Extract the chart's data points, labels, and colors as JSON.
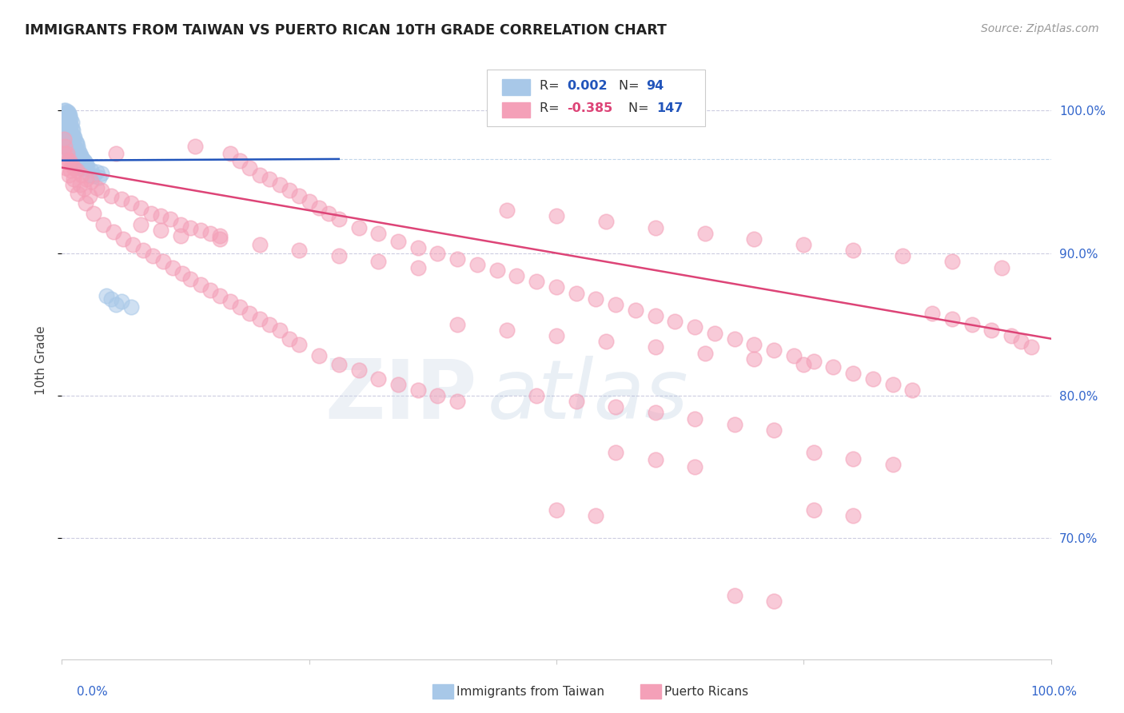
{
  "title": "IMMIGRANTS FROM TAIWAN VS PUERTO RICAN 10TH GRADE CORRELATION CHART",
  "source": "Source: ZipAtlas.com",
  "ylabel": "10th Grade",
  "ytick_labels": [
    "70.0%",
    "80.0%",
    "90.0%",
    "100.0%"
  ],
  "ytick_values": [
    0.7,
    0.8,
    0.9,
    1.0
  ],
  "xrange": [
    0.0,
    1.0
  ],
  "yrange": [
    0.615,
    1.035
  ],
  "blue_color": "#a8c8e8",
  "pink_color": "#f4a0b8",
  "blue_line_color": "#2255bb",
  "pink_line_color": "#dd4477",
  "watermark_zip": "ZIP",
  "watermark_atlas": "atlas",
  "blue_scatter": [
    [
      0.002,
      1.0
    ],
    [
      0.004,
      1.0
    ],
    [
      0.005,
      0.999
    ],
    [
      0.006,
      0.999
    ],
    [
      0.007,
      0.998
    ],
    [
      0.003,
      0.998
    ],
    [
      0.002,
      0.997
    ],
    [
      0.008,
      0.997
    ],
    [
      0.004,
      0.996
    ],
    [
      0.005,
      0.996
    ],
    [
      0.006,
      0.995
    ],
    [
      0.007,
      0.995
    ],
    [
      0.009,
      0.994
    ],
    [
      0.003,
      0.994
    ],
    [
      0.002,
      0.993
    ],
    [
      0.008,
      0.993
    ],
    [
      0.01,
      0.992
    ],
    [
      0.004,
      0.992
    ],
    [
      0.005,
      0.991
    ],
    [
      0.006,
      0.991
    ],
    [
      0.007,
      0.99
    ],
    [
      0.003,
      0.99
    ],
    [
      0.009,
      0.989
    ],
    [
      0.002,
      0.989
    ],
    [
      0.008,
      0.988
    ],
    [
      0.01,
      0.988
    ],
    [
      0.004,
      0.987
    ],
    [
      0.005,
      0.987
    ],
    [
      0.006,
      0.986
    ],
    [
      0.011,
      0.986
    ],
    [
      0.007,
      0.985
    ],
    [
      0.003,
      0.985
    ],
    [
      0.009,
      0.984
    ],
    [
      0.002,
      0.984
    ],
    [
      0.008,
      0.983
    ],
    [
      0.01,
      0.983
    ],
    [
      0.012,
      0.982
    ],
    [
      0.004,
      0.982
    ],
    [
      0.005,
      0.981
    ],
    [
      0.013,
      0.981
    ],
    [
      0.006,
      0.98
    ],
    [
      0.011,
      0.98
    ],
    [
      0.007,
      0.979
    ],
    [
      0.003,
      0.979
    ],
    [
      0.009,
      0.978
    ],
    [
      0.014,
      0.978
    ],
    [
      0.008,
      0.977
    ],
    [
      0.015,
      0.977
    ],
    [
      0.01,
      0.976
    ],
    [
      0.012,
      0.976
    ],
    [
      0.004,
      0.975
    ],
    [
      0.016,
      0.975
    ],
    [
      0.005,
      0.974
    ],
    [
      0.013,
      0.974
    ],
    [
      0.006,
      0.973
    ],
    [
      0.011,
      0.973
    ],
    [
      0.007,
      0.972
    ],
    [
      0.017,
      0.972
    ],
    [
      0.009,
      0.971
    ],
    [
      0.014,
      0.971
    ],
    [
      0.008,
      0.97
    ],
    [
      0.018,
      0.97
    ],
    [
      0.01,
      0.969
    ],
    [
      0.015,
      0.969
    ],
    [
      0.012,
      0.968
    ],
    [
      0.019,
      0.968
    ],
    [
      0.02,
      0.967
    ],
    [
      0.016,
      0.967
    ],
    [
      0.013,
      0.966
    ],
    [
      0.021,
      0.966
    ],
    [
      0.011,
      0.965
    ],
    [
      0.022,
      0.965
    ],
    [
      0.017,
      0.964
    ],
    [
      0.023,
      0.964
    ],
    [
      0.014,
      0.963
    ],
    [
      0.024,
      0.963
    ],
    [
      0.018,
      0.962
    ],
    [
      0.025,
      0.962
    ],
    [
      0.015,
      0.961
    ],
    [
      0.026,
      0.961
    ],
    [
      0.019,
      0.96
    ],
    [
      0.02,
      0.959
    ],
    [
      0.03,
      0.958
    ],
    [
      0.035,
      0.957
    ],
    [
      0.04,
      0.956
    ],
    [
      0.028,
      0.955
    ],
    [
      0.032,
      0.954
    ],
    [
      0.038,
      0.953
    ],
    [
      0.045,
      0.87
    ],
    [
      0.05,
      0.868
    ],
    [
      0.06,
      0.866
    ],
    [
      0.055,
      0.864
    ],
    [
      0.07,
      0.862
    ]
  ],
  "pink_scatter": [
    [
      0.002,
      0.98
    ],
    [
      0.003,
      0.975
    ],
    [
      0.005,
      0.97
    ],
    [
      0.008,
      0.965
    ],
    [
      0.01,
      0.962
    ],
    [
      0.012,
      0.96
    ],
    [
      0.015,
      0.958
    ],
    [
      0.02,
      0.955
    ],
    [
      0.025,
      0.952
    ],
    [
      0.03,
      0.95
    ],
    [
      0.035,
      0.946
    ],
    [
      0.04,
      0.944
    ],
    [
      0.05,
      0.94
    ],
    [
      0.06,
      0.938
    ],
    [
      0.07,
      0.935
    ],
    [
      0.08,
      0.932
    ],
    [
      0.09,
      0.928
    ],
    [
      0.1,
      0.926
    ],
    [
      0.11,
      0.924
    ],
    [
      0.12,
      0.92
    ],
    [
      0.13,
      0.918
    ],
    [
      0.14,
      0.916
    ],
    [
      0.15,
      0.914
    ],
    [
      0.16,
      0.912
    ],
    [
      0.003,
      0.97
    ],
    [
      0.006,
      0.965
    ],
    [
      0.009,
      0.958
    ],
    [
      0.012,
      0.952
    ],
    [
      0.018,
      0.948
    ],
    [
      0.022,
      0.945
    ],
    [
      0.028,
      0.94
    ],
    [
      0.004,
      0.96
    ],
    [
      0.007,
      0.955
    ],
    [
      0.011,
      0.948
    ],
    [
      0.016,
      0.942
    ],
    [
      0.024,
      0.935
    ],
    [
      0.032,
      0.928
    ],
    [
      0.042,
      0.92
    ],
    [
      0.052,
      0.915
    ],
    [
      0.062,
      0.91
    ],
    [
      0.072,
      0.906
    ],
    [
      0.082,
      0.902
    ],
    [
      0.092,
      0.898
    ],
    [
      0.102,
      0.894
    ],
    [
      0.112,
      0.89
    ],
    [
      0.122,
      0.886
    ],
    [
      0.055,
      0.97
    ],
    [
      0.135,
      0.975
    ],
    [
      0.17,
      0.97
    ],
    [
      0.18,
      0.965
    ],
    [
      0.19,
      0.96
    ],
    [
      0.2,
      0.955
    ],
    [
      0.21,
      0.952
    ],
    [
      0.22,
      0.948
    ],
    [
      0.23,
      0.944
    ],
    [
      0.24,
      0.94
    ],
    [
      0.25,
      0.936
    ],
    [
      0.26,
      0.932
    ],
    [
      0.27,
      0.928
    ],
    [
      0.28,
      0.924
    ],
    [
      0.3,
      0.918
    ],
    [
      0.32,
      0.914
    ],
    [
      0.34,
      0.908
    ],
    [
      0.36,
      0.904
    ],
    [
      0.38,
      0.9
    ],
    [
      0.4,
      0.896
    ],
    [
      0.42,
      0.892
    ],
    [
      0.44,
      0.888
    ],
    [
      0.46,
      0.884
    ],
    [
      0.48,
      0.88
    ],
    [
      0.5,
      0.876
    ],
    [
      0.52,
      0.872
    ],
    [
      0.54,
      0.868
    ],
    [
      0.56,
      0.864
    ],
    [
      0.58,
      0.86
    ],
    [
      0.6,
      0.856
    ],
    [
      0.62,
      0.852
    ],
    [
      0.64,
      0.848
    ],
    [
      0.66,
      0.844
    ],
    [
      0.68,
      0.84
    ],
    [
      0.7,
      0.836
    ],
    [
      0.72,
      0.832
    ],
    [
      0.74,
      0.828
    ],
    [
      0.76,
      0.824
    ],
    [
      0.78,
      0.82
    ],
    [
      0.8,
      0.816
    ],
    [
      0.82,
      0.812
    ],
    [
      0.84,
      0.808
    ],
    [
      0.86,
      0.804
    ],
    [
      0.88,
      0.858
    ],
    [
      0.9,
      0.854
    ],
    [
      0.92,
      0.85
    ],
    [
      0.94,
      0.846
    ],
    [
      0.96,
      0.842
    ],
    [
      0.97,
      0.838
    ],
    [
      0.98,
      0.834
    ],
    [
      0.13,
      0.882
    ],
    [
      0.14,
      0.878
    ],
    [
      0.15,
      0.874
    ],
    [
      0.16,
      0.87
    ],
    [
      0.17,
      0.866
    ],
    [
      0.18,
      0.862
    ],
    [
      0.19,
      0.858
    ],
    [
      0.2,
      0.854
    ],
    [
      0.21,
      0.85
    ],
    [
      0.22,
      0.846
    ],
    [
      0.23,
      0.84
    ],
    [
      0.24,
      0.836
    ],
    [
      0.26,
      0.828
    ],
    [
      0.28,
      0.822
    ],
    [
      0.3,
      0.818
    ],
    [
      0.32,
      0.812
    ],
    [
      0.34,
      0.808
    ],
    [
      0.36,
      0.804
    ],
    [
      0.38,
      0.8
    ],
    [
      0.4,
      0.796
    ],
    [
      0.08,
      0.92
    ],
    [
      0.1,
      0.916
    ],
    [
      0.12,
      0.912
    ],
    [
      0.45,
      0.93
    ],
    [
      0.5,
      0.926
    ],
    [
      0.55,
      0.922
    ],
    [
      0.6,
      0.918
    ],
    [
      0.65,
      0.914
    ],
    [
      0.7,
      0.91
    ],
    [
      0.75,
      0.906
    ],
    [
      0.8,
      0.902
    ],
    [
      0.85,
      0.898
    ],
    [
      0.9,
      0.894
    ],
    [
      0.95,
      0.89
    ],
    [
      0.4,
      0.85
    ],
    [
      0.45,
      0.846
    ],
    [
      0.5,
      0.842
    ],
    [
      0.55,
      0.838
    ],
    [
      0.6,
      0.834
    ],
    [
      0.65,
      0.83
    ],
    [
      0.7,
      0.826
    ],
    [
      0.75,
      0.822
    ],
    [
      0.16,
      0.91
    ],
    [
      0.2,
      0.906
    ],
    [
      0.24,
      0.902
    ],
    [
      0.28,
      0.898
    ],
    [
      0.32,
      0.894
    ],
    [
      0.36,
      0.89
    ],
    [
      0.48,
      0.8
    ],
    [
      0.52,
      0.796
    ],
    [
      0.56,
      0.792
    ],
    [
      0.6,
      0.788
    ],
    [
      0.64,
      0.784
    ],
    [
      0.68,
      0.78
    ],
    [
      0.72,
      0.776
    ],
    [
      0.56,
      0.76
    ],
    [
      0.6,
      0.755
    ],
    [
      0.64,
      0.75
    ],
    [
      0.5,
      0.72
    ],
    [
      0.54,
      0.716
    ],
    [
      0.76,
      0.76
    ],
    [
      0.8,
      0.756
    ],
    [
      0.84,
      0.752
    ],
    [
      0.76,
      0.72
    ],
    [
      0.8,
      0.716
    ],
    [
      0.68,
      0.66
    ],
    [
      0.72,
      0.656
    ]
  ],
  "blue_trend": [
    0.0,
    1.0,
    0.9645,
    0.9655
  ],
  "pink_trend_start_y": 0.96,
  "pink_trend_end_y": 0.84
}
